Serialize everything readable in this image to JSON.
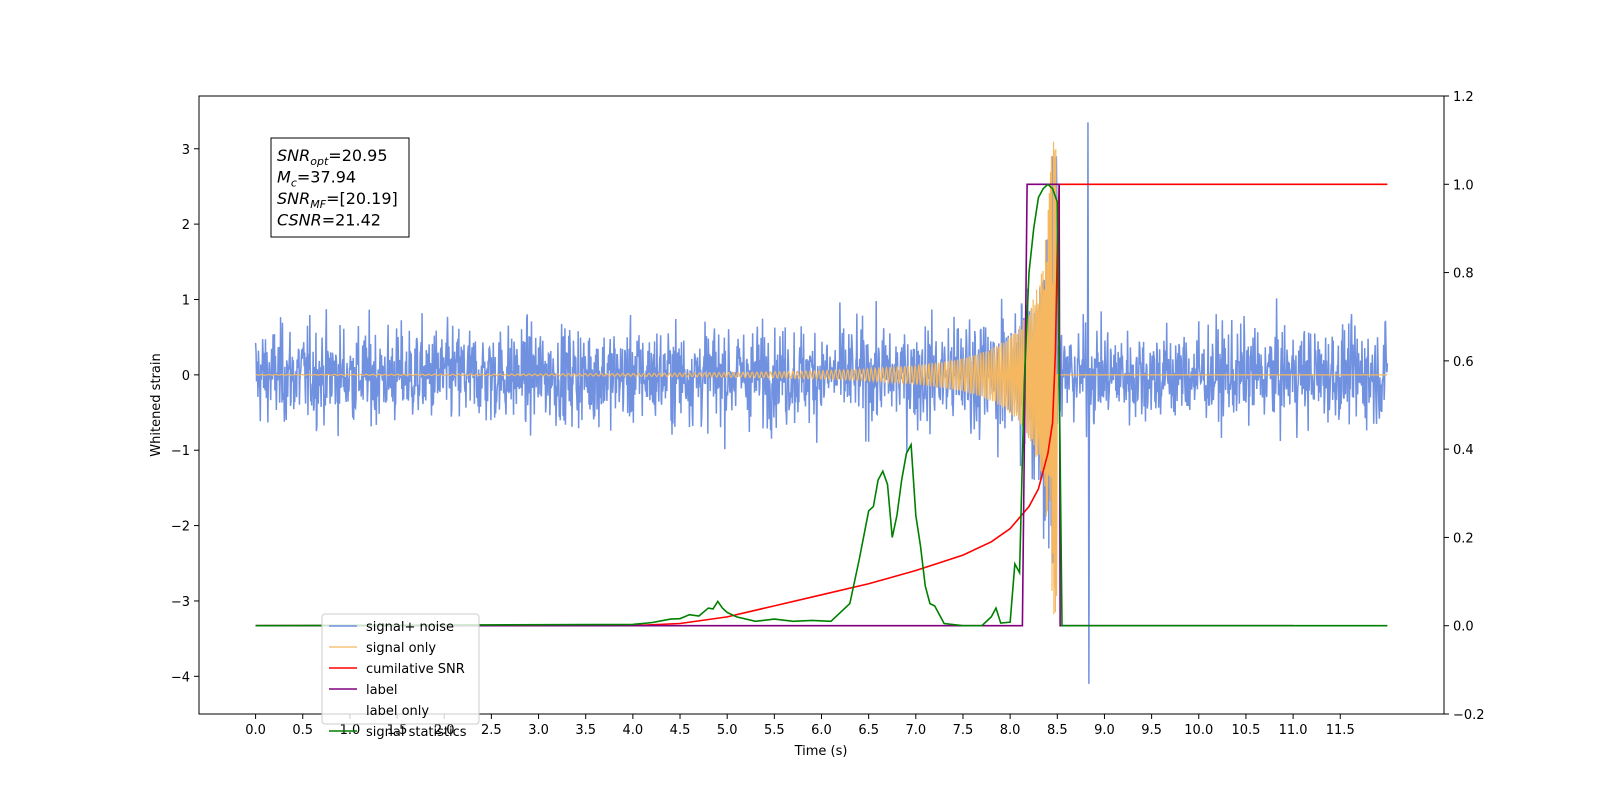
{
  "chart_data": {
    "type": "line",
    "xlabel": "Time (s)",
    "ylabel": "Whitened strain",
    "xlim": [
      -0.6,
      12.6
    ],
    "ylim": [
      -4.5,
      3.7
    ],
    "ylim_right": [
      -0.2,
      1.2
    ],
    "x_ticks": [
      0.0,
      0.5,
      1.0,
      1.5,
      2.0,
      2.5,
      3.0,
      3.5,
      4.0,
      4.5,
      5.0,
      5.5,
      6.0,
      6.5,
      7.0,
      7.5,
      8.0,
      8.5,
      9.0,
      9.5,
      10.0,
      10.5,
      11.0,
      11.5
    ],
    "x_tick_labels": [
      "0.0",
      "0.5",
      "1.0",
      "1.5",
      "2.0",
      "2.5",
      "3.0",
      "3.5",
      "4.0",
      "4.5",
      "5.0",
      "5.5",
      "6.0",
      "6.5",
      "7.0",
      "7.5",
      "8.0",
      "8.5",
      "9.0",
      "9.5",
      "10.0",
      "10.5",
      "11.0",
      "11.5"
    ],
    "y_ticks_left": [
      -4,
      -3,
      -2,
      -1,
      0,
      1,
      2,
      3
    ],
    "y_tick_labels_left": [
      "−4",
      "−3",
      "−2",
      "−1",
      "0",
      "1",
      "2",
      "3"
    ],
    "y_ticks_right": [
      -0.2,
      0.0,
      0.2,
      0.4,
      0.6,
      0.8,
      1.0,
      1.2
    ],
    "y_tick_labels_right": [
      "−0.2",
      "0.0",
      "0.2",
      "0.4",
      "0.6",
      "0.8",
      "1.0",
      "1.2"
    ],
    "grid": false,
    "legend_position": "lower-left",
    "series": [
      {
        "name": "signal+ noise",
        "axis": "left",
        "color": "#7090e0",
        "kind": "noise",
        "x_range": [
          0.0,
          12.0
        ],
        "typical_amplitude": 1.0,
        "max": 3.35,
        "min": -4.1
      },
      {
        "name": "signal only",
        "axis": "left",
        "color": "#f5b860",
        "kind": "chirp",
        "x_range": [
          0.0,
          12.0
        ],
        "merger_time": 8.5,
        "peak_amplitude": 3.2
      },
      {
        "name": "cumilative SNR",
        "axis": "right",
        "color": "#ff0000",
        "x": [
          0.0,
          4.0,
          4.5,
          5.0,
          5.5,
          6.0,
          6.5,
          7.0,
          7.5,
          7.8,
          8.0,
          8.2,
          8.3,
          8.4,
          8.45,
          8.48,
          8.5,
          8.52,
          12.0
        ],
        "y": [
          0.0,
          0.0,
          0.005,
          0.02,
          0.045,
          0.07,
          0.095,
          0.125,
          0.16,
          0.19,
          0.22,
          0.27,
          0.31,
          0.39,
          0.46,
          0.62,
          0.85,
          1.0,
          1.0
        ]
      },
      {
        "name": "label",
        "axis": "right",
        "color": "#800080",
        "x": [
          0.0,
          8.13,
          8.18,
          8.52,
          8.53,
          11.0
        ],
        "y": [
          0.0,
          0.0,
          1.0,
          1.0,
          0.0,
          0.0
        ]
      },
      {
        "name": "label only",
        "axis": "right",
        "color": "#ffffff",
        "x": [],
        "y": []
      },
      {
        "name": "signal statistics",
        "axis": "right",
        "color": "#008000",
        "x": [
          0.0,
          4.0,
          4.2,
          4.4,
          4.5,
          4.6,
          4.7,
          4.8,
          4.85,
          4.9,
          4.95,
          5.0,
          5.1,
          5.3,
          5.5,
          5.7,
          5.9,
          6.1,
          6.3,
          6.4,
          6.5,
          6.55,
          6.6,
          6.65,
          6.7,
          6.75,
          6.8,
          6.85,
          6.9,
          6.95,
          7.0,
          7.05,
          7.1,
          7.15,
          7.2,
          7.3,
          7.5,
          7.7,
          7.8,
          7.85,
          7.9,
          8.0,
          8.05,
          8.1,
          8.15,
          8.2,
          8.25,
          8.3,
          8.35,
          8.4,
          8.45,
          8.5,
          8.55,
          8.8,
          12.0
        ],
        "y": [
          0.0,
          0.003,
          0.007,
          0.015,
          0.016,
          0.025,
          0.022,
          0.04,
          0.038,
          0.055,
          0.04,
          0.03,
          0.02,
          0.01,
          0.015,
          0.01,
          0.012,
          0.01,
          0.05,
          0.15,
          0.26,
          0.27,
          0.33,
          0.35,
          0.32,
          0.2,
          0.25,
          0.33,
          0.39,
          0.41,
          0.25,
          0.18,
          0.09,
          0.05,
          0.045,
          0.005,
          0.0,
          0.0,
          0.02,
          0.04,
          0.006,
          0.008,
          0.14,
          0.12,
          0.55,
          0.8,
          0.9,
          0.97,
          0.99,
          1.0,
          0.99,
          0.96,
          0.0,
          0.0,
          0.0
        ]
      }
    ],
    "annotation_box": {
      "lines": [
        {
          "base": "SNR",
          "sub": "opt",
          "rest": "=20.95"
        },
        {
          "base": "M",
          "sub": "c",
          "rest": "=37.94"
        },
        {
          "base": "SNR",
          "sub": "MF",
          "rest": "=[20.19]"
        },
        {
          "base": "CSNR",
          "sub": "",
          "rest": "=21.42"
        }
      ]
    }
  }
}
